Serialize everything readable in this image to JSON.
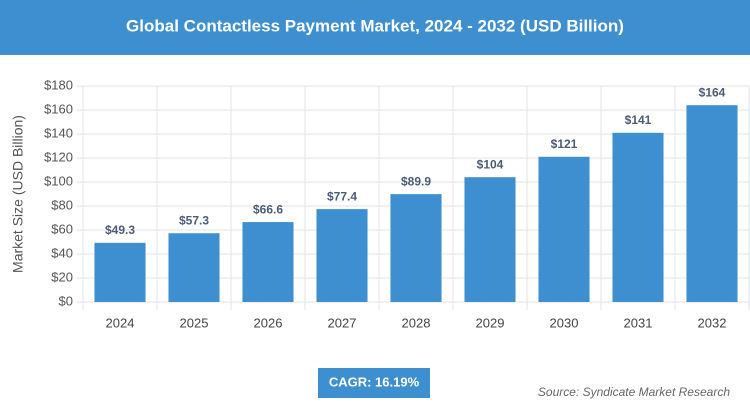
{
  "chart_data": {
    "type": "bar",
    "title": "Global Contactless Payment Market, 2024 - 2032 (USD Billion)",
    "y_label": "Market Size (USD Billion)",
    "categories": [
      "2024",
      "2025",
      "2026",
      "2027",
      "2028",
      "2029",
      "2030",
      "2031",
      "2032"
    ],
    "values": [
      49.3,
      57.3,
      66.6,
      77.4,
      89.9,
      104,
      121,
      141,
      164
    ],
    "value_labels": [
      "$49.3",
      "$57.3",
      "$66.6",
      "$77.4",
      "$89.9",
      "$104",
      "$121",
      "$141",
      "$164"
    ],
    "color": "#3d8fcf",
    "ylim": [
      0,
      180
    ],
    "yticks": [
      {
        "value": 0,
        "label": "$0"
      },
      {
        "value": 20,
        "label": "$20"
      },
      {
        "value": 40,
        "label": "$40"
      },
      {
        "value": 60,
        "label": "$60"
      },
      {
        "value": 80,
        "label": "$80"
      },
      {
        "value": 100,
        "label": "$100"
      },
      {
        "value": 120,
        "label": "$120"
      },
      {
        "value": 140,
        "label": "$140"
      },
      {
        "value": 160,
        "label": "$160"
      },
      {
        "value": 180,
        "label": "$180"
      }
    ],
    "grid": true,
    "cagr": "CAGR: 16.19%",
    "source": "Source: Syndicate Market Research"
  }
}
